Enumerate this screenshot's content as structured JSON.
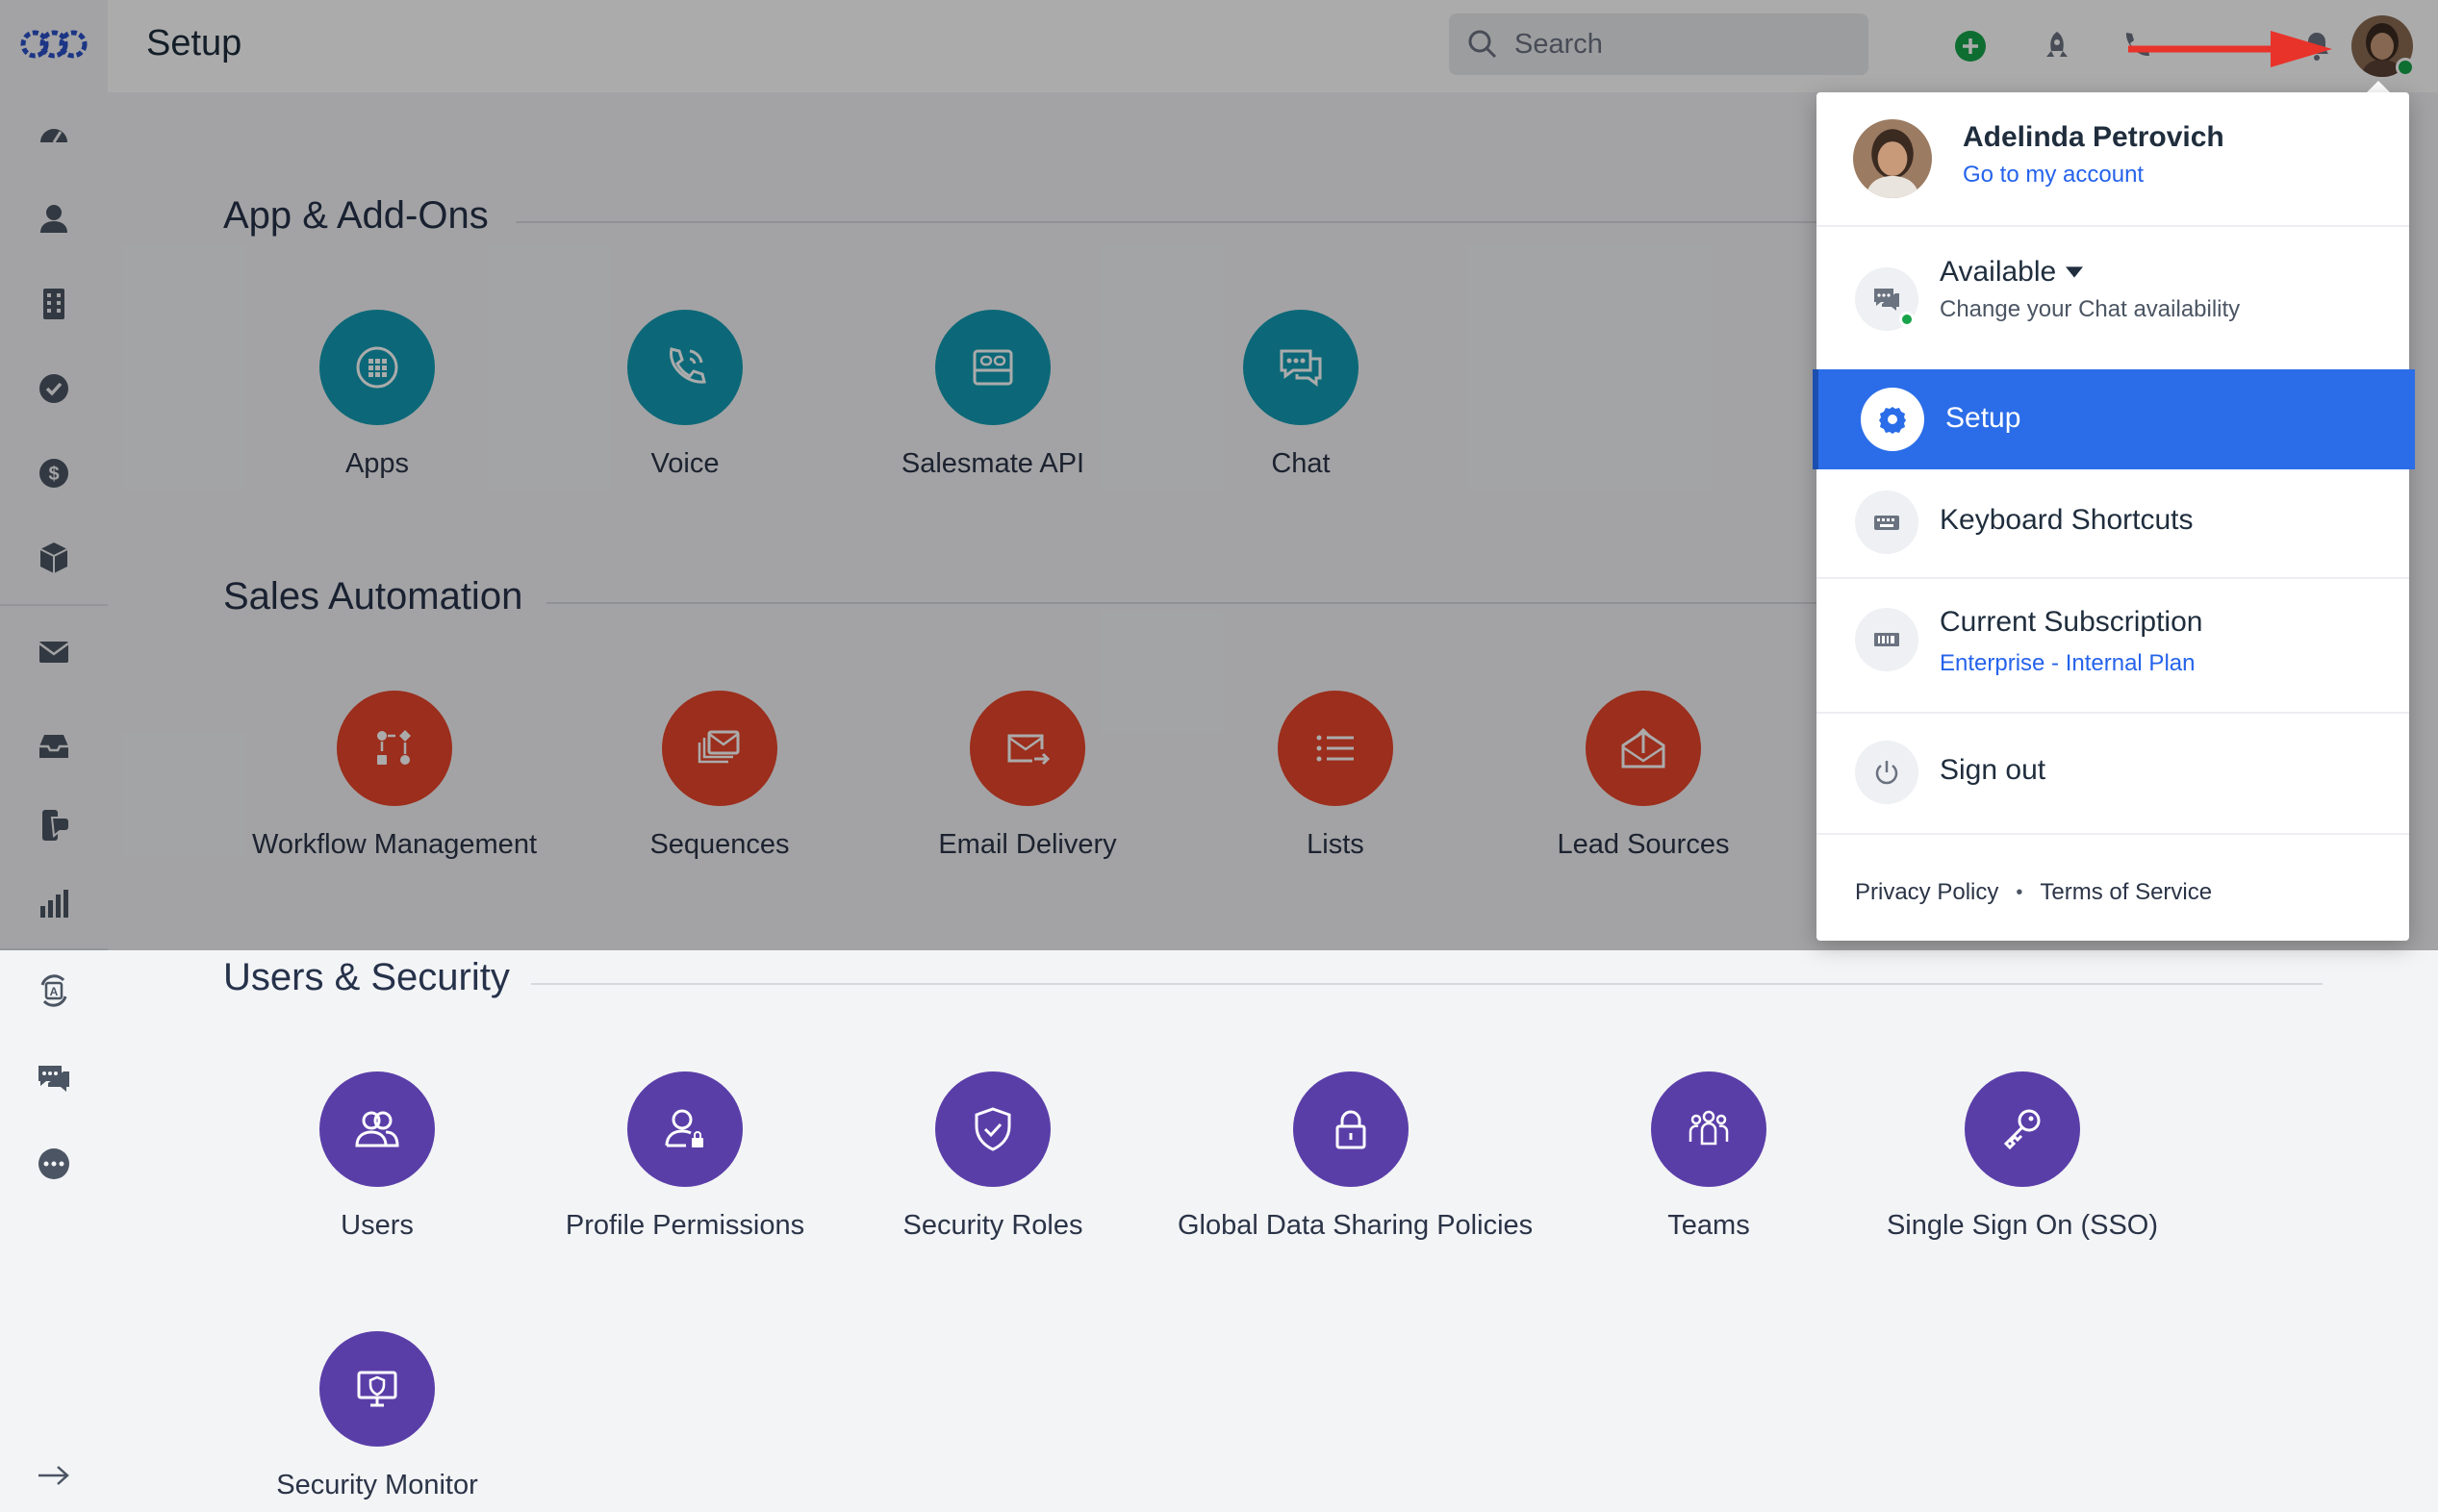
{
  "header": {
    "title": "Setup",
    "search_placeholder": "Search"
  },
  "sidebar": {
    "icons": [
      "logo-icon",
      "dashboard-icon",
      "contacts-icon",
      "companies-icon",
      "tasks-icon",
      "deals-icon",
      "products-icon",
      "email-icon",
      "inbox-icon",
      "conversations-icon",
      "reports-icon",
      "automation-icon",
      "chat-icon",
      "more-icon",
      "expand-arrow-icon"
    ]
  },
  "sections": [
    {
      "title": "App & Add-Ons",
      "color": "#139bb3",
      "tiles": [
        {
          "label": "Apps",
          "icon": "grid-icon"
        },
        {
          "label": "Voice",
          "icon": "phone-icon"
        },
        {
          "label": "Salesmate API",
          "icon": "api-icon"
        },
        {
          "label": "Chat",
          "icon": "chat-bubble-icon"
        }
      ]
    },
    {
      "title": "Sales Automation",
      "color": "#e8452a",
      "tiles": [
        {
          "label": "Workflow Management",
          "icon": "workflow-icon"
        },
        {
          "label": "Sequences",
          "icon": "sequences-icon"
        },
        {
          "label": "Email Delivery",
          "icon": "email-delivery-icon"
        },
        {
          "label": "Lists",
          "icon": "list-icon"
        },
        {
          "label": "Lead Sources",
          "icon": "lead-sources-icon"
        }
      ]
    },
    {
      "title": "Users & Security",
      "color": "#5a3ea8",
      "tiles": [
        {
          "label": "Users",
          "icon": "users-icon"
        },
        {
          "label": "Profile Permissions",
          "icon": "profile-lock-icon"
        },
        {
          "label": "Security Roles",
          "icon": "shield-icon"
        },
        {
          "label": "Global Data Sharing Policies",
          "icon": "lock-icon"
        },
        {
          "label": "Teams",
          "icon": "teams-icon"
        },
        {
          "label": "Single Sign On (SSO)",
          "icon": "key-icon"
        },
        {
          "label": "Security Monitor",
          "icon": "monitor-shield-icon"
        }
      ]
    }
  ],
  "dropdown": {
    "user_name": "Adelinda Petrovich",
    "account_link": "Go to my account",
    "availability_label": "Available",
    "availability_sub": "Change your Chat availability",
    "setup_label": "Setup",
    "shortcuts_label": "Keyboard Shortcuts",
    "subscription_label": "Current Subscription",
    "subscription_plan": "Enterprise - Internal Plan",
    "signout_label": "Sign out",
    "privacy_link": "Privacy Policy",
    "terms_link": "Terms of Service",
    "footer_separator": "•"
  },
  "colors": {
    "accent": "#2b6de8",
    "link": "#2563eb",
    "status_online": "#16a34a",
    "annotation_arrow": "#e8332a"
  }
}
